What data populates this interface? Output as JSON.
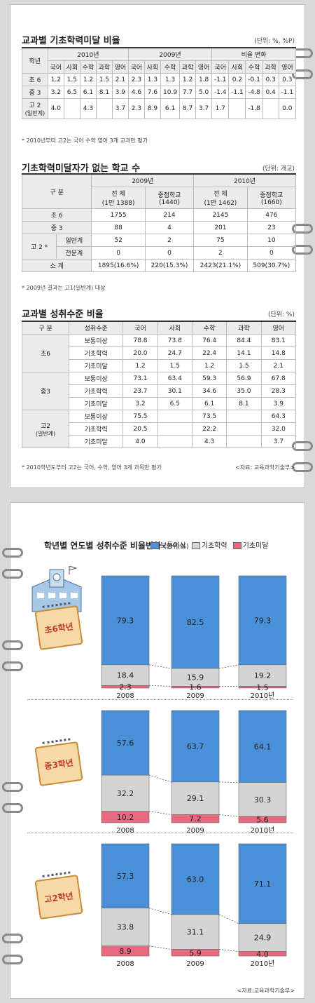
{
  "table1": {
    "title": "교과별 기초학력미달 비율",
    "unit": "(단위: %, %P)",
    "col_grade": "학년",
    "groups": [
      "2010년",
      "2009년",
      "비율 변화"
    ],
    "subjects": [
      "국어",
      "사회",
      "수학",
      "과학",
      "영어"
    ],
    "rows": [
      {
        "label": "초 6",
        "sub": "",
        "cells": [
          "1.2",
          "1.5",
          "1.2",
          "1.5",
          "2.1",
          "2.3",
          "1.3",
          "1.3",
          "1.2",
          "1.8",
          "-1.1",
          "0.2",
          "-0.1",
          "0.3",
          "0.3"
        ]
      },
      {
        "label": "중 3",
        "sub": "",
        "cells": [
          "3.2",
          "6.5",
          "6.1",
          "8.1",
          "3.9",
          "4.6",
          "7.6",
          "10.9",
          "7.7",
          "5.0",
          "-1.4",
          "-1.1",
          "-4.8",
          "0.4",
          "-1.1"
        ]
      },
      {
        "label": "고 2",
        "sub": "(일반계)",
        "cells": [
          "4.0",
          "",
          "4.3",
          "",
          "3.7",
          "2.3",
          "8.9",
          "6.1",
          "8.7",
          "3.7",
          "1.7",
          "",
          "-1.8",
          "",
          "0.0"
        ]
      }
    ],
    "note": "* 2010년부터 고2는 국어 수학 영어 3개 교과만 평가"
  },
  "table2": {
    "title": "기초학력미달자가 없는 학교 수",
    "unit": "(단위: 개교)",
    "col_group": "구  분",
    "years": [
      "2009년",
      "2010년"
    ],
    "sub_headers": [
      "전   체\n(1만 1388)",
      "중점학교\n(1440)",
      "전   체\n(1만 1462)",
      "중점학교\n(1660)"
    ],
    "sub_h": [
      [
        "전   체",
        "(1만 1388)"
      ],
      [
        "중점학교",
        "(1440)"
      ],
      [
        "전   체",
        "(1만 1462)"
      ],
      [
        "중점학교",
        "(1660)"
      ]
    ],
    "rows": [
      {
        "label": "초 6",
        "sub": "",
        "cells": [
          "1755",
          "214",
          "2145",
          "476"
        ]
      },
      {
        "label": "중 3",
        "sub": "",
        "cells": [
          "88",
          "4",
          "201",
          "23"
        ]
      },
      {
        "label": "고 2 *",
        "sub": "일반계",
        "cells": [
          "52",
          "2",
          "75",
          "10"
        ]
      },
      {
        "label": "",
        "sub": "전문계",
        "cells": [
          "0",
          "0",
          "2",
          "0"
        ]
      },
      {
        "label": "소  계",
        "sub": "",
        "cells": [
          "1895(16.6%)",
          "220(15.3%)",
          "2423(21.1%)",
          "509(30.7%)"
        ]
      }
    ],
    "note": "* 2009년 결과는 고1(일반계) 대상"
  },
  "table3": {
    "title": "교과별 성취수준 비율",
    "unit": "(단위: %)",
    "col_group": "구  분",
    "col_level": "성취수준",
    "subjects": [
      "국어",
      "사회",
      "수학",
      "과학",
      "영어"
    ],
    "groups": [
      {
        "label": "초6",
        "sub": "",
        "rows": [
          {
            "level": "보통이상",
            "cells": [
              "78.8",
              "73.8",
              "76.4",
              "84.4",
              "83.1"
            ]
          },
          {
            "level": "기초학력",
            "cells": [
              "20.0",
              "24.7",
              "22.4",
              "14.1",
              "14.8"
            ]
          },
          {
            "level": "기초미달",
            "cells": [
              "1.2",
              "1.5",
              "1.2",
              "1.5",
              "2.1"
            ]
          }
        ]
      },
      {
        "label": "중3",
        "sub": "",
        "rows": [
          {
            "level": "보통이상",
            "cells": [
              "73.1",
              "63.4",
              "59.3",
              "56.9",
              "67.8"
            ]
          },
          {
            "level": "기초학력",
            "cells": [
              "23.7",
              "30.1",
              "34.6",
              "35.0",
              "28.3"
            ]
          },
          {
            "level": "기초미달",
            "cells": [
              "3.2",
              "6.5",
              "6.1",
              "8.1",
              "3.9"
            ]
          }
        ]
      },
      {
        "label": "고2",
        "sub": "(일반계)",
        "rows": [
          {
            "level": "보통이상",
            "cells": [
              "75.5",
              "",
              "73.5",
              "",
              "64.3"
            ]
          },
          {
            "level": "기초학력",
            "cells": [
              "20.5",
              "",
              "22.2",
              "",
              "32.0"
            ]
          },
          {
            "level": "기초미달",
            "cells": [
              "4.0",
              "",
              "4.3",
              "",
              "3.7"
            ]
          }
        ]
      }
    ],
    "note": "* 2010학년도부터 고2는 국어, 수학, 영어 3개 과목만 평가",
    "source": "<자료: 교육과학기술부>"
  },
  "chart_data": {
    "type": "bar",
    "title": "학년별 연도별 성취수준 비율변화",
    "unit": "(단위:%)",
    "legend": [
      "보통이상",
      "기초학력",
      "기초미달"
    ],
    "colors": {
      "보통이상": "#4a90d9",
      "기초학력": "#d4d4d4",
      "기초미달": "#e8697e"
    },
    "categories": [
      "2008",
      "2009",
      "2010년"
    ],
    "panels": [
      {
        "label": "초6학년",
        "series": [
          {
            "name": "보통이상",
            "values": [
              "79.3",
              "82.5",
              "79.3"
            ]
          },
          {
            "name": "기초학력",
            "values": [
              "18.4",
              "15.9",
              "19.2"
            ]
          },
          {
            "name": "기초미달",
            "values": [
              "2.3",
              "1.6",
              "1.5"
            ]
          }
        ]
      },
      {
        "label": "중3학년",
        "series": [
          {
            "name": "보통이상",
            "values": [
              "57.6",
              "63.7",
              "64.1"
            ]
          },
          {
            "name": "기초학력",
            "values": [
              "32.2",
              "29.1",
              "30.3"
            ]
          },
          {
            "name": "기초미달",
            "values": [
              "10.2",
              "7.2",
              "5.6"
            ]
          }
        ]
      },
      {
        "label": "고2학년",
        "series": [
          {
            "name": "보통이상",
            "values": [
              "57.3",
              "63.0",
              "71.1"
            ]
          },
          {
            "name": "기초학력",
            "values": [
              "33.8",
              "31.1",
              "24.9"
            ]
          },
          {
            "name": "기초미달",
            "values": [
              "8.9",
              "5.9",
              "4.0"
            ]
          }
        ]
      }
    ],
    "source": "<자료:교육과학기술부>"
  }
}
